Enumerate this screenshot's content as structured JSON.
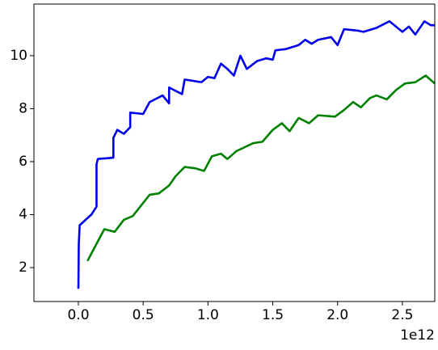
{
  "chart_data": {
    "type": "line",
    "x_offset_text": "1e12",
    "xlim": [
      -343000000000.0,
      2750000000000.0
    ],
    "ylim": [
      0.72,
      11.95
    ],
    "xticks": [
      {
        "value": 0,
        "label": "0.0"
      },
      {
        "value": 500000000000.0,
        "label": "0.5"
      },
      {
        "value": 1000000000000.0,
        "label": "1.0"
      },
      {
        "value": 1500000000000.0,
        "label": "1.5"
      },
      {
        "value": 2000000000000.0,
        "label": "2.0"
      },
      {
        "value": 2500000000000.0,
        "label": "2.5"
      }
    ],
    "yticks": [
      2,
      4,
      6,
      8,
      10
    ],
    "grid": false,
    "series": [
      {
        "color": "#0000ee",
        "x": [
          0,
          3000000000.0,
          10000000000.0,
          100000000000.0,
          140000000000.0,
          140000000000.0,
          150000000000.0,
          270000000000.0,
          270000000000.0,
          300000000000.0,
          350000000000.0,
          400000000000.0,
          400000000000.0,
          500000000000.0,
          550000000000.0,
          650000000000.0,
          700000000000.0,
          700000000000.0,
          800000000000.0,
          820000000000.0,
          950000000000.0,
          1000000000000.0,
          1050000000000.0,
          1100000000000.0,
          1150000000000.0,
          1200000000000.0,
          1250000000000.0,
          1300000000000.0,
          1380000000000.0,
          1450000000000.0,
          1500000000000.0,
          1520000000000.0,
          1600000000000.0,
          1700000000000.0,
          1750000000000.0,
          1800000000000.0,
          1850000000000.0,
          1950000000000.0,
          2000000000000.0,
          2050000000000.0,
          2150000000000.0,
          2200000000000.0,
          2300000000000.0,
          2400000000000.0,
          2500000000000.0,
          2550000000000.0,
          2600000000000.0,
          2670000000000.0,
          2720000000000.0,
          2750000000000.0
        ],
        "values": [
          1.2,
          2.9,
          3.6,
          4.0,
          4.3,
          5.9,
          6.1,
          6.15,
          6.9,
          7.2,
          7.05,
          7.3,
          7.85,
          7.8,
          8.25,
          8.5,
          8.2,
          8.8,
          8.55,
          9.1,
          9.0,
          9.2,
          9.15,
          9.7,
          9.5,
          9.25,
          10.0,
          9.5,
          9.8,
          9.9,
          9.85,
          10.2,
          10.25,
          10.4,
          10.6,
          10.45,
          10.6,
          10.7,
          10.4,
          11.0,
          10.95,
          10.9,
          11.05,
          11.3,
          10.9,
          11.1,
          10.8,
          11.3,
          11.15,
          11.15
        ]
      },
      {
        "color": "#008000",
        "x": [
          70000000000.0,
          200000000000.0,
          280000000000.0,
          350000000000.0,
          420000000000.0,
          550000000000.0,
          620000000000.0,
          700000000000.0,
          750000000000.0,
          820000000000.0,
          900000000000.0,
          970000000000.0,
          1030000000000.0,
          1100000000000.0,
          1150000000000.0,
          1220000000000.0,
          1350000000000.0,
          1420000000000.0,
          1500000000000.0,
          1570000000000.0,
          1630000000000.0,
          1700000000000.0,
          1780000000000.0,
          1850000000000.0,
          1980000000000.0,
          2050000000000.0,
          2120000000000.0,
          2180000000000.0,
          2250000000000.0,
          2300000000000.0,
          2380000000000.0,
          2450000000000.0,
          2520000000000.0,
          2600000000000.0,
          2680000000000.0,
          2750000000000.0
        ],
        "values": [
          2.25,
          3.45,
          3.35,
          3.8,
          3.95,
          4.75,
          4.8,
          5.1,
          5.45,
          5.8,
          5.75,
          5.65,
          6.2,
          6.3,
          6.1,
          6.4,
          6.7,
          6.75,
          7.2,
          7.45,
          7.15,
          7.65,
          7.45,
          7.75,
          7.7,
          7.95,
          8.25,
          8.05,
          8.4,
          8.5,
          8.35,
          8.7,
          8.95,
          9.0,
          9.25,
          8.95
        ]
      }
    ]
  }
}
